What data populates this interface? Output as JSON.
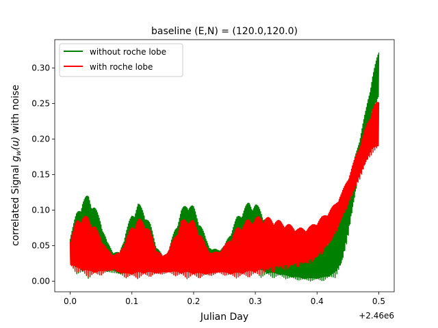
{
  "chart_data": {
    "type": "line",
    "title": "baseline (E,N) = (120.0,120.0)",
    "xlabel": "Julian Day",
    "ylabel_prefix": "correlated Signal ",
    "ylabel_math": "g",
    "ylabel_sub": "w",
    "ylabel_args": "(u)",
    "ylabel_suffix": " with noise",
    "x_offset_label": "+2.46e6",
    "xlim": [
      -0.025,
      0.525
    ],
    "ylim": [
      -0.015,
      0.34
    ],
    "xticks": [
      0.0,
      0.1,
      0.2,
      0.3,
      0.4,
      0.5
    ],
    "xtick_labels": [
      "0.0",
      "0.1",
      "0.2",
      "0.3",
      "0.4",
      "0.5"
    ],
    "yticks": [
      0.0,
      0.05,
      0.1,
      0.15,
      0.2,
      0.25,
      0.3
    ],
    "ytick_labels": [
      "0.00",
      "0.05",
      "0.10",
      "0.15",
      "0.20",
      "0.25",
      "0.30"
    ],
    "grid": false,
    "legend_position": "top-left",
    "series": [
      {
        "name": "without roche lobe",
        "color": "#008000",
        "x": [
          0.0,
          0.01,
          0.02,
          0.03,
          0.04,
          0.05,
          0.06,
          0.07,
          0.08,
          0.09,
          0.1,
          0.11,
          0.12,
          0.13,
          0.14,
          0.15,
          0.16,
          0.17,
          0.18,
          0.19,
          0.2,
          0.21,
          0.22,
          0.23,
          0.24,
          0.25,
          0.26,
          0.27,
          0.28,
          0.29,
          0.3,
          0.31,
          0.32,
          0.33,
          0.34,
          0.35,
          0.36,
          0.37,
          0.38,
          0.39,
          0.4,
          0.41,
          0.42,
          0.43,
          0.44,
          0.45,
          0.46,
          0.47,
          0.48,
          0.49,
          0.5
        ],
        "upper": [
          0.065,
          0.095,
          0.115,
          0.122,
          0.105,
          0.085,
          0.055,
          0.042,
          0.04,
          0.07,
          0.095,
          0.11,
          0.1,
          0.08,
          0.05,
          0.035,
          0.045,
          0.075,
          0.1,
          0.113,
          0.105,
          0.085,
          0.06,
          0.045,
          0.045,
          0.05,
          0.07,
          0.09,
          0.102,
          0.112,
          0.11,
          0.1,
          0.085,
          0.07,
          0.055,
          0.05,
          0.045,
          0.042,
          0.04,
          0.04,
          0.042,
          0.05,
          0.06,
          0.075,
          0.1,
          0.13,
          0.17,
          0.205,
          0.245,
          0.29,
          0.325
        ],
        "lower": [
          0.02,
          0.01,
          0.005,
          0.003,
          0.005,
          0.008,
          0.01,
          0.012,
          0.008,
          0.004,
          0.003,
          0.003,
          0.004,
          0.006,
          0.008,
          0.01,
          0.012,
          0.008,
          0.004,
          0.003,
          0.003,
          0.004,
          0.006,
          0.008,
          0.01,
          0.012,
          0.01,
          0.008,
          0.006,
          0.005,
          0.005,
          0.005,
          0.004,
          0.004,
          0.005,
          0.003,
          0.002,
          0.001,
          0.0,
          0.0,
          0.0,
          0.0,
          0.002,
          0.005,
          0.02,
          0.06,
          0.11,
          0.16,
          0.2,
          0.235,
          0.255
        ]
      },
      {
        "name": "with roche lobe",
        "color": "#ff0000",
        "x": [
          0.0,
          0.01,
          0.02,
          0.03,
          0.04,
          0.05,
          0.06,
          0.07,
          0.08,
          0.09,
          0.1,
          0.11,
          0.12,
          0.13,
          0.14,
          0.15,
          0.16,
          0.17,
          0.18,
          0.19,
          0.2,
          0.21,
          0.22,
          0.23,
          0.24,
          0.25,
          0.26,
          0.27,
          0.28,
          0.29,
          0.3,
          0.31,
          0.32,
          0.33,
          0.34,
          0.35,
          0.36,
          0.37,
          0.38,
          0.39,
          0.4,
          0.41,
          0.42,
          0.43,
          0.44,
          0.45,
          0.46,
          0.47,
          0.48,
          0.49,
          0.5
        ],
        "upper": [
          0.06,
          0.085,
          0.093,
          0.09,
          0.078,
          0.062,
          0.045,
          0.038,
          0.04,
          0.06,
          0.078,
          0.088,
          0.085,
          0.07,
          0.045,
          0.035,
          0.045,
          0.065,
          0.085,
          0.09,
          0.085,
          0.07,
          0.05,
          0.04,
          0.042,
          0.05,
          0.062,
          0.075,
          0.082,
          0.088,
          0.09,
          0.092,
          0.09,
          0.088,
          0.085,
          0.082,
          0.078,
          0.075,
          0.075,
          0.078,
          0.085,
          0.092,
          0.1,
          0.11,
          0.125,
          0.145,
          0.17,
          0.195,
          0.22,
          0.245,
          0.255
        ],
        "lower": [
          0.02,
          0.012,
          0.008,
          0.005,
          0.006,
          0.008,
          0.012,
          0.015,
          0.01,
          0.005,
          0.003,
          0.003,
          0.004,
          0.006,
          0.008,
          0.01,
          0.01,
          0.007,
          0.004,
          0.003,
          0.003,
          0.004,
          0.006,
          0.008,
          0.01,
          0.008,
          0.005,
          0.004,
          0.004,
          0.005,
          0.005,
          0.008,
          0.01,
          0.012,
          0.015,
          0.015,
          0.018,
          0.02,
          0.022,
          0.025,
          0.03,
          0.04,
          0.05,
          0.065,
          0.085,
          0.105,
          0.125,
          0.145,
          0.165,
          0.18,
          0.185
        ]
      }
    ]
  }
}
